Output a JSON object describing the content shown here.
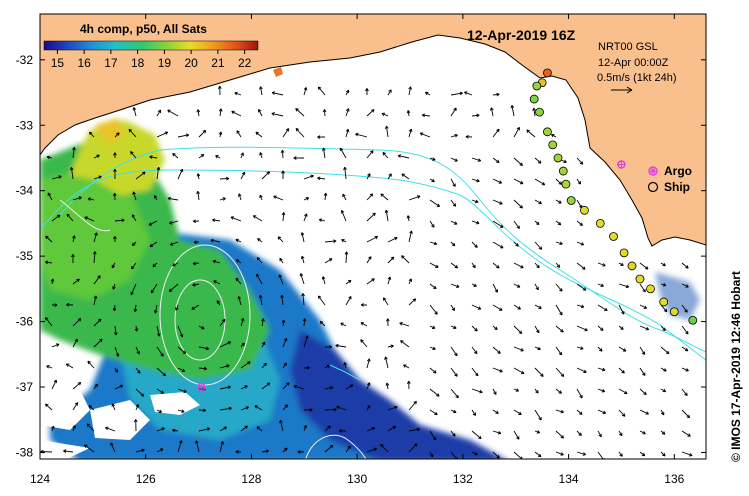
{
  "map": {
    "date_title": "12-Apr-2019 16Z",
    "product_title": "4h comp, p50, All Sats",
    "current_info": {
      "line1": "NRT00 GSL",
      "line2": "12-Apr 00:00Z",
      "line3": "0.5m/s (1kt 24h)"
    },
    "legend": {
      "argo_label": "Argo",
      "ship_label": "Ship",
      "argo_color": "#e040e0",
      "ship_color": "#000000"
    },
    "credit": "© IMOS 17-Apr-2019 12:46 Hobart",
    "colors": {
      "land": "#f9c08d",
      "ocean": "#ffffff",
      "contour": "#40e0e8",
      "ssh_contour": "#f0f0f0",
      "vector": "#000000"
    }
  },
  "chart_data": {
    "type": "heatmap",
    "x_axis": {
      "ticks": [
        124,
        126,
        128,
        130,
        132,
        134,
        136
      ],
      "tick_labels": [
        "124",
        "126",
        "128",
        "130",
        "132",
        "134",
        "136"
      ],
      "range": [
        124,
        136.6
      ]
    },
    "y_axis": {
      "ticks": [
        -32,
        -33,
        -34,
        -35,
        -36,
        -37,
        -38
      ],
      "tick_labels": [
        "-32",
        "-33",
        "-34",
        "-35",
        "-36",
        "-37",
        "-38"
      ],
      "range": [
        -38.1,
        -31.3
      ]
    },
    "colorbar": {
      "title": "4h comp, p50, All Sats",
      "ticks": [
        15,
        16,
        17,
        18,
        19,
        20,
        21,
        22
      ],
      "tick_labels": [
        "15",
        "16",
        "17",
        "18",
        "19",
        "20",
        "21",
        "22"
      ],
      "range": [
        14.5,
        22.5
      ]
    },
    "ship_track": [
      {
        "lon": 133.6,
        "lat": -32.2,
        "sst": 21.5
      },
      {
        "lon": 133.5,
        "lat": -32.35,
        "sst": 20.3
      },
      {
        "lon": 133.4,
        "lat": -32.4,
        "sst": 19.2
      },
      {
        "lon": 133.35,
        "lat": -32.6,
        "sst": 19.0
      },
      {
        "lon": 133.45,
        "lat": -32.8,
        "sst": 19.1
      },
      {
        "lon": 133.6,
        "lat": -33.1,
        "sst": 19.3
      },
      {
        "lon": 133.7,
        "lat": -33.3,
        "sst": 19.3
      },
      {
        "lon": 133.8,
        "lat": -33.5,
        "sst": 19.3
      },
      {
        "lon": 133.9,
        "lat": -33.7,
        "sst": 19.3
      },
      {
        "lon": 133.95,
        "lat": -33.9,
        "sst": 19.4
      },
      {
        "lon": 134.05,
        "lat": -34.15,
        "sst": 19.2
      },
      {
        "lon": 134.3,
        "lat": -34.3,
        "sst": 19.9
      },
      {
        "lon": 134.6,
        "lat": -34.5,
        "sst": 19.9
      },
      {
        "lon": 134.85,
        "lat": -34.7,
        "sst": 19.9
      },
      {
        "lon": 135.05,
        "lat": -34.95,
        "sst": 20.0
      },
      {
        "lon": 135.2,
        "lat": -35.15,
        "sst": 20.1
      },
      {
        "lon": 135.35,
        "lat": -35.35,
        "sst": 20.0
      },
      {
        "lon": 135.55,
        "lat": -35.5,
        "sst": 20.0
      },
      {
        "lon": 135.8,
        "lat": -35.7,
        "sst": 19.9
      },
      {
        "lon": 136.0,
        "lat": -35.85,
        "sst": 19.8
      },
      {
        "lon": 136.35,
        "lat": -35.98,
        "sst": 18.8
      }
    ],
    "argo_floats": [
      {
        "lon": 135.0,
        "lat": -33.6
      },
      {
        "lon": 127.05,
        "lat": -37.0
      }
    ]
  }
}
